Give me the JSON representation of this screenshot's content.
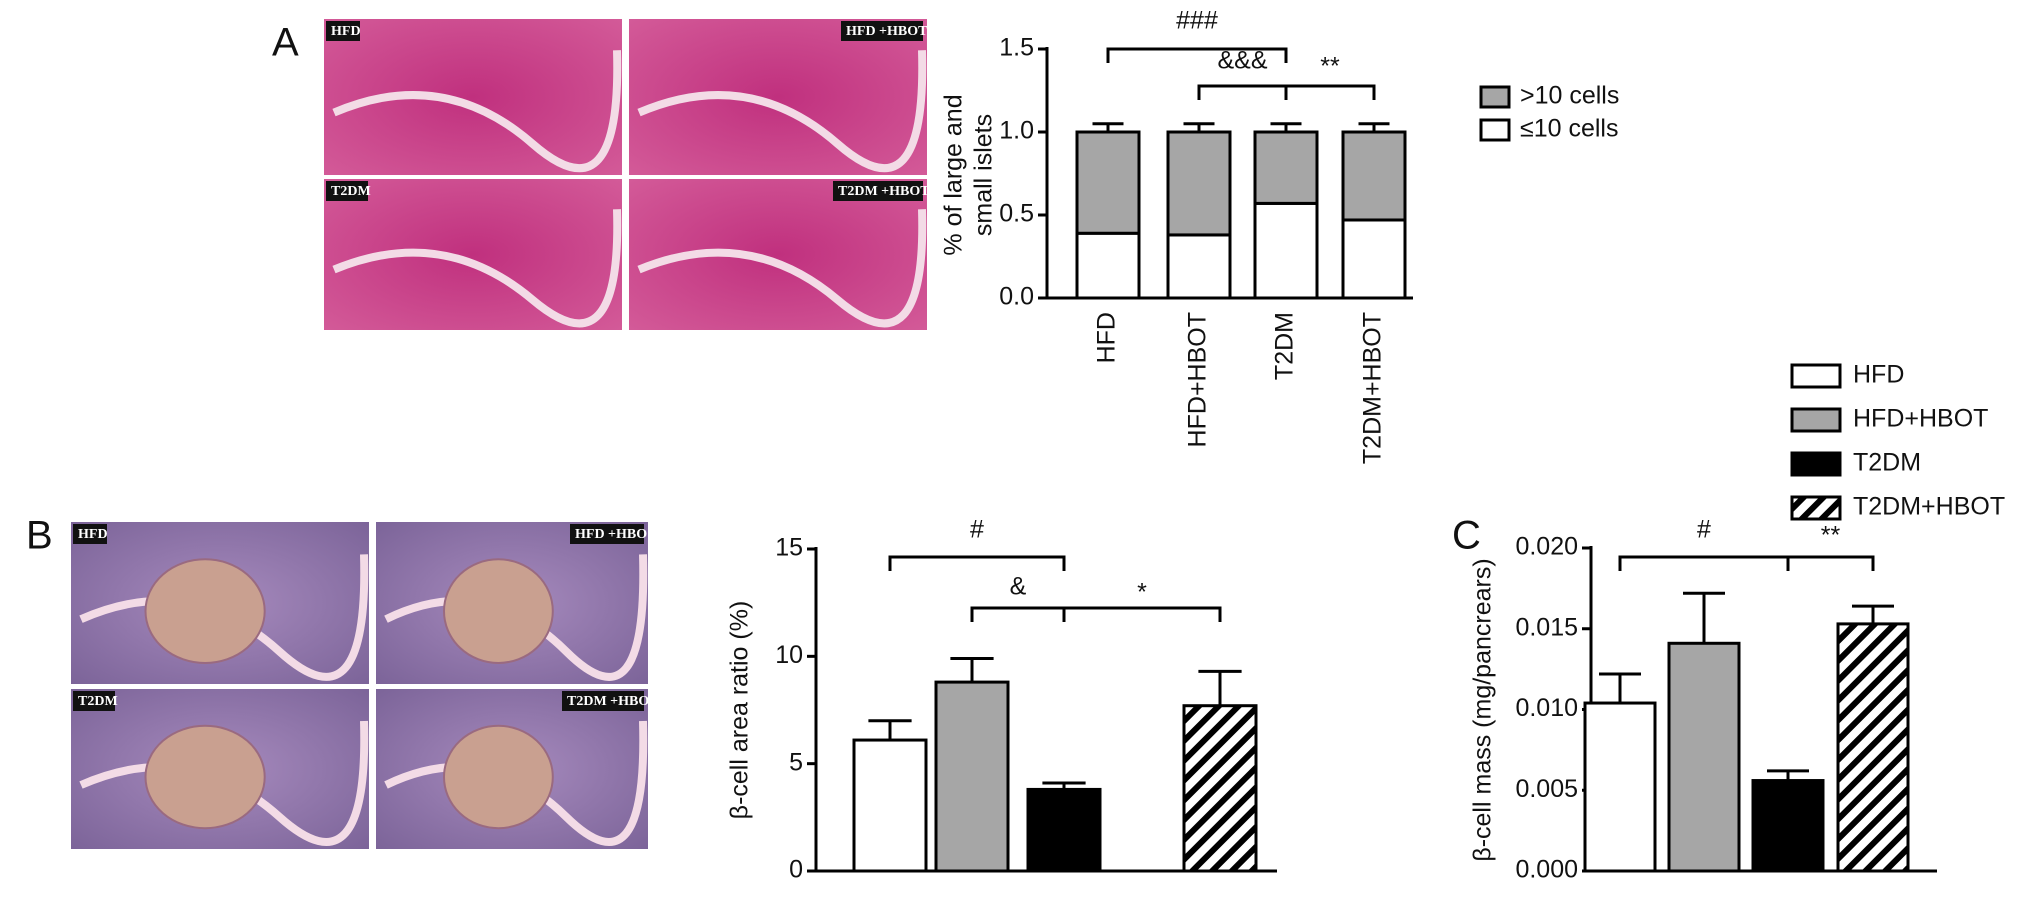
{
  "panel_labels": [
    "A",
    "B",
    "C"
  ],
  "micrographs": {
    "A": [
      "HFD",
      "HFD +HBOT",
      "T2DM",
      "T2DM +HBOT"
    ],
    "B": [
      "HFD",
      "HFD +HBO",
      "T2DM",
      "T2DM +HBO"
    ]
  },
  "chart_data": [
    {
      "type": "stacked_bar",
      "y_label": [
        "% of large and",
        "small islets"
      ],
      "categories": [
        "HFD",
        "HFD+HBOT",
        "T2DM",
        "T2DM+HBOT"
      ],
      "series": [
        {
          "name": "≤10 cells",
          "color": "#ffffff",
          "values": [
            0.39,
            0.38,
            0.57,
            0.47
          ],
          "errors": [
            0.01,
            0.01,
            0.01,
            0.01
          ]
        },
        {
          "name": ">10 cells",
          "color": "#a6a6a6",
          "values": [
            0.61,
            0.62,
            0.43,
            0.53
          ],
          "errors": [
            0.05,
            0.05,
            0.05,
            0.05
          ]
        }
      ],
      "ylim": [
        0,
        1.5
      ],
      "yticks": [
        {
          "value": 0,
          "label": "0.0"
        },
        0.5,
        {
          "value": 1,
          "label": "1.0"
        },
        1.5
      ],
      "annotations": [
        "###",
        "&&&",
        "**"
      ]
    },
    {
      "type": "bar",
      "y_label": "β-cell area ratio (%)",
      "categories": [
        "HFD",
        "HFD+HBOT",
        "T2DM",
        "T2DM+HBOT"
      ],
      "values": [
        6.1,
        8.8,
        3.8,
        7.7
      ],
      "errors": [
        0.9,
        1.1,
        0.3,
        1.6
      ],
      "colors": [
        "#ffffff",
        "#a6a6a6",
        "#000000",
        "#ffffff"
      ],
      "hatched": [
        false,
        false,
        false,
        true
      ],
      "ylim": [
        0,
        15
      ],
      "yticks": [
        0,
        5,
        10,
        15
      ],
      "annotations": [
        "#",
        "&",
        "*"
      ]
    },
    {
      "type": "bar",
      "y_label": "β-cell mass (mg/pancrears)",
      "categories": [
        "HFD",
        "HFD+HBOT",
        "T2DM",
        "T2DM+HBOT"
      ],
      "values": [
        0.0104,
        0.0141,
        0.0056,
        0.0153
      ],
      "errors": [
        0.0018,
        0.0031,
        0.0006,
        0.0011
      ],
      "colors": [
        "#ffffff",
        "#a6a6a6",
        "#000000",
        "#ffffff"
      ],
      "hatched": [
        false,
        false,
        false,
        true
      ],
      "ylim": [
        0,
        0.02
      ],
      "yticks": [
        {
          "value": 0,
          "label": "0.000"
        },
        {
          "value": 0.005,
          "label": "0.005"
        },
        {
          "value": 0.01,
          "label": "0.010"
        },
        {
          "value": 0.015,
          "label": "0.015"
        },
        {
          "value": 0.02,
          "label": "0.020"
        }
      ],
      "annotations": [
        "#",
        "**"
      ]
    }
  ]
}
